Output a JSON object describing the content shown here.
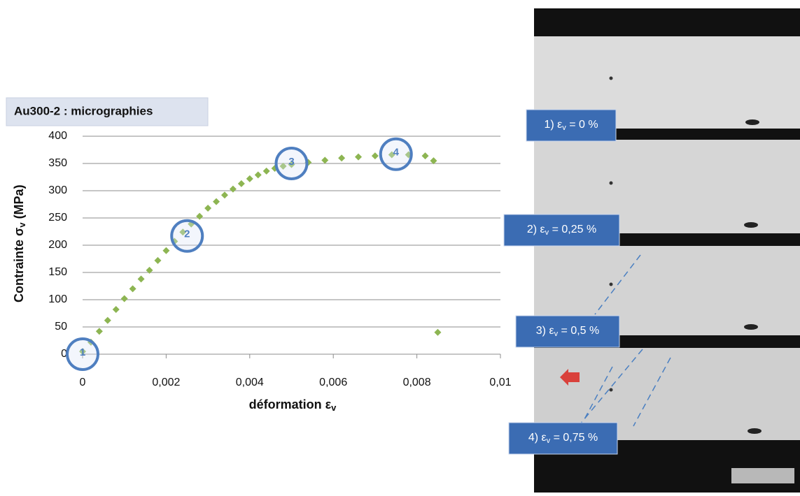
{
  "chart_data": {
    "type": "scatter",
    "title": "Au300-2 : micrographies",
    "xlabel": [
      "déformation ε",
      "v"
    ],
    "ylabel": [
      "Contrainte σ",
      "v",
      " (MPa)"
    ],
    "x": [
      0,
      0.0002,
      0.0004,
      0.0006,
      0.0008,
      0.001,
      0.0012,
      0.0014,
      0.0016,
      0.0018,
      0.002,
      0.0022,
      0.0024,
      0.0026,
      0.0028,
      0.003,
      0.0032,
      0.0034,
      0.0036,
      0.0038,
      0.004,
      0.0042,
      0.0044,
      0.0046,
      0.0048,
      0.005,
      0.0054,
      0.0058,
      0.0062,
      0.0066,
      0.007,
      0.0074,
      0.0078,
      0.0082,
      0.0084,
      0.0085
    ],
    "values": [
      5,
      22,
      42,
      62,
      82,
      102,
      120,
      138,
      154,
      172,
      190,
      207,
      224,
      239,
      253,
      268,
      280,
      292,
      303,
      313,
      322,
      329,
      336,
      341,
      345,
      348,
      352,
      356,
      360,
      362,
      364,
      366,
      366,
      364,
      355,
      40
    ],
    "color": "#8db552",
    "xlim": [
      0,
      0.01
    ],
    "xticks": [
      0,
      {
        "value": 0.002,
        "label": "0,002"
      },
      {
        "value": 0.004,
        "label": "0,004"
      },
      {
        "value": 0.006,
        "label": "0,006"
      },
      {
        "value": 0.008,
        "label": "0,008"
      },
      {
        "value": 0.01,
        "label": "0,01"
      }
    ],
    "ylim": [
      0,
      400
    ],
    "yticks": [
      0,
      50,
      100,
      150,
      200,
      250,
      300,
      350,
      400
    ],
    "grid": true,
    "annotations": [
      {
        "label": "1",
        "x": 0,
        "y": 0
      },
      {
        "label": "2",
        "x": 0.0025,
        "y": 217
      },
      {
        "label": "3",
        "x": 0.005,
        "y": 350
      },
      {
        "label": "4",
        "x": 0.0075,
        "y": 367
      }
    ],
    "micrographs": [
      {
        "prefix": "1) ε",
        "sub": "v",
        "suffix": " = 0 %"
      },
      {
        "prefix": "2)  ε",
        "sub": "v",
        "suffix": " = 0,25 %"
      },
      {
        "prefix": "3)  ε",
        "sub": "v",
        "suffix": " = 0,5 %"
      },
      {
        "prefix": "4)  ε",
        "sub": "v",
        "suffix": " = 0,75 %"
      }
    ]
  }
}
